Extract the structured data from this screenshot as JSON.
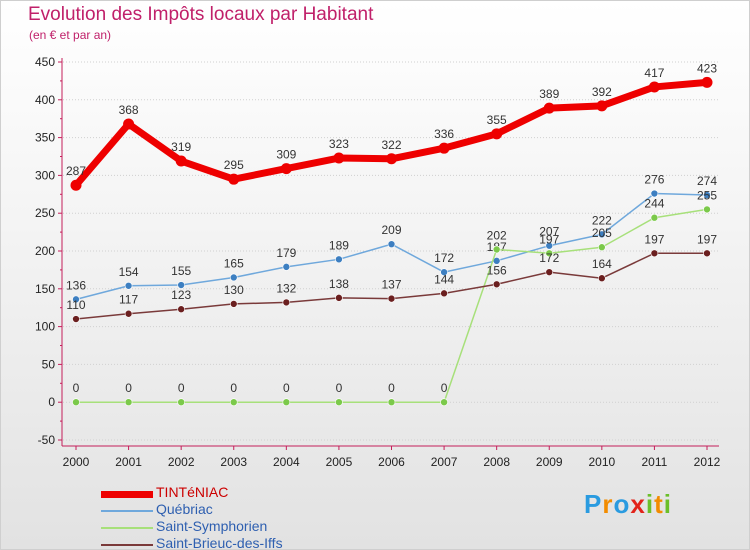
{
  "title": "Evolution des Impôts locaux par Habitant",
  "subtitle": "(en € et par an)",
  "colors": {
    "title": "#c0206a",
    "axis": "#c41e5a",
    "tick_text": "#222222",
    "grid": "#d0d0d0"
  },
  "chart_data": {
    "type": "line",
    "title": "Evolution des Impôts locaux par Habitant",
    "subtitle": "(en € et par an)",
    "x": [
      2000,
      2001,
      2002,
      2003,
      2004,
      2005,
      2006,
      2007,
      2008,
      2009,
      2010,
      2011,
      2012
    ],
    "ylim": [
      -50,
      450
    ],
    "yticks": [
      -50,
      0,
      50,
      100,
      150,
      200,
      250,
      300,
      350,
      400,
      450
    ],
    "grid": true,
    "legend_position": "bottom-left",
    "series": [
      {
        "name": "TINTéNIAC",
        "color": "#ee0000",
        "marker_color": "#ee0000",
        "width": 7,
        "label_color": "#333333",
        "values": [
          287,
          368,
          319,
          295,
          309,
          323,
          322,
          336,
          355,
          389,
          392,
          417,
          423
        ],
        "labels": [
          "287",
          "368",
          "319",
          "295",
          "309",
          "323",
          "322",
          "336",
          "355",
          "389",
          "392",
          "417",
          "423"
        ]
      },
      {
        "name": "Québriac",
        "color": "#6fa8dc",
        "marker_color": "#3d7fc1",
        "width": 1.5,
        "label_color": "#333333",
        "values": [
          136,
          154,
          155,
          165,
          179,
          189,
          209,
          172,
          187,
          207,
          222,
          276,
          274
        ],
        "labels": [
          "136",
          "154",
          "155",
          "165",
          "179",
          "189",
          "209",
          "172",
          "187",
          "207",
          "222",
          "276",
          "274"
        ]
      },
      {
        "name": "Saint-Symphorien",
        "color": "#a7e07a",
        "marker_color": "#7bc94a",
        "width": 1.5,
        "label_color": "#333333",
        "values": [
          0,
          0,
          0,
          0,
          0,
          0,
          0,
          0,
          202,
          197,
          205,
          244,
          255
        ],
        "labels": [
          "0",
          "0",
          "0",
          "0",
          "0",
          "0",
          "0",
          "0",
          "202",
          "197",
          "205",
          "244",
          "255"
        ]
      },
      {
        "name": "Saint-Brieuc-des-Iffs",
        "color": "#7a3a3a",
        "marker_color": "#6b1f1f",
        "width": 1.5,
        "label_color": "#333333",
        "values": [
          110,
          117,
          123,
          130,
          132,
          138,
          137,
          144,
          156,
          172,
          164,
          197,
          197
        ],
        "labels": [
          "110",
          "117",
          "123",
          "130",
          "132",
          "138",
          "137",
          "144",
          "156",
          "172",
          "164",
          "197",
          "197"
        ]
      }
    ]
  },
  "legend": {
    "items": [
      {
        "label": "TINTéNIAC",
        "color": "#ee0000",
        "label_color": "#cc0000",
        "thickness": 7
      },
      {
        "label": "Québriac",
        "color": "#6fa8dc",
        "label_color": "#2e5fb0",
        "thickness": 2
      },
      {
        "label": "Saint-Symphorien",
        "color": "#a7e07a",
        "label_color": "#2e5fb0",
        "thickness": 2
      },
      {
        "label": "Saint-Brieuc-des-Iffs",
        "color": "#7a3a3a",
        "label_color": "#2e5fb0",
        "thickness": 2
      }
    ]
  },
  "logo": {
    "text": "Proxiti",
    "letters": [
      {
        "ch": "P",
        "color": "#2a9be0"
      },
      {
        "ch": "r",
        "color": "#f28c00"
      },
      {
        "ch": "o",
        "color": "#2a9be0"
      },
      {
        "ch": "x",
        "color": "#e2231a"
      },
      {
        "ch": "i",
        "color": "#6bbf2a"
      },
      {
        "ch": "t",
        "color": "#f28c00"
      },
      {
        "ch": "i",
        "color": "#6bbf2a"
      }
    ]
  }
}
